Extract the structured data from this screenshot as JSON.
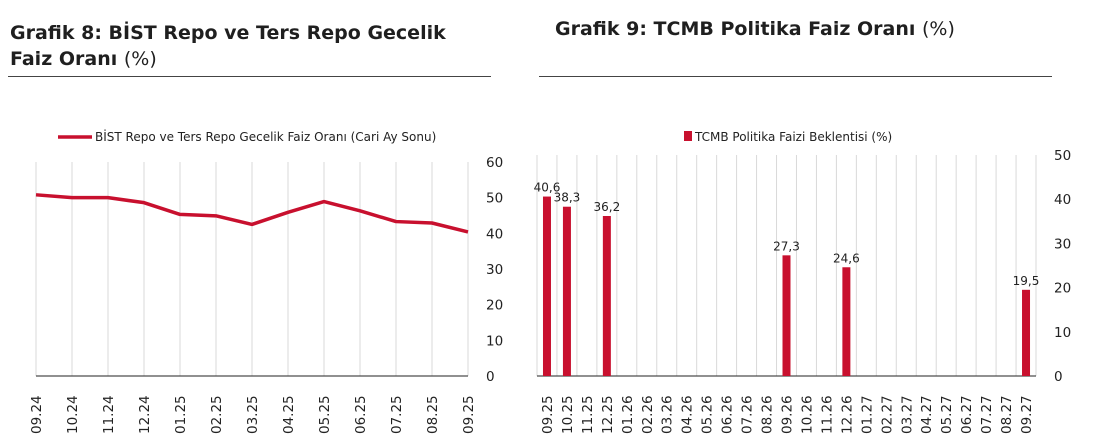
{
  "panels": {
    "left": {
      "title": "Grafik 8:  BİST Repo ve Ters Repo Gecelik Faiz Oranı",
      "title_unit": "(%)"
    },
    "right": {
      "title": "Grafik 9: TCMB Politika Faiz Oranı",
      "title_unit": "(%)"
    }
  },
  "colors": {
    "series": "#C8102E",
    "grid": "#d9d9d9",
    "axis": "#222222"
  },
  "chart_data": [
    {
      "type": "line",
      "legend": "BİST Repo ve Ters Repo Gecelik Faiz Oranı (Cari Ay Sonu)",
      "legend_position": "top",
      "categories": [
        "09.24",
        "10.24",
        "11.24",
        "12.24",
        "01.25",
        "02.25",
        "03.25",
        "04.25",
        "05.25",
        "06.25",
        "07.25",
        "08.25",
        "09.25"
      ],
      "values": [
        50.8,
        50.0,
        50.0,
        48.6,
        45.3,
        44.9,
        42.5,
        45.9,
        48.9,
        46.3,
        43.3,
        42.9,
        40.4
      ],
      "ylim": [
        0,
        60
      ],
      "yticks": [
        0,
        10,
        20,
        30,
        40,
        50,
        60
      ],
      "y_axis_side": "right",
      "grid": "vertical"
    },
    {
      "type": "bar",
      "legend": "TCMB Politika Faizi Beklentisi (%)",
      "legend_position": "top",
      "categories": [
        "09.25",
        "10.25",
        "11.25",
        "12.25",
        "01.26",
        "02.26",
        "03.26",
        "04.26",
        "05.26",
        "06.26",
        "07.26",
        "08.26",
        "09.26",
        "10.26",
        "11.26",
        "12.26",
        "01.27",
        "02.27",
        "03.27",
        "04.27",
        "05.27",
        "06.27",
        "07.27",
        "08.27",
        "09.27"
      ],
      "points": [
        {
          "category": "09.25",
          "value": 40.6,
          "label": "40,6"
        },
        {
          "category": "10.25",
          "value": 38.3,
          "label": "38,3"
        },
        {
          "category": "12.25",
          "value": 36.2,
          "label": "36,2"
        },
        {
          "category": "09.26",
          "value": 27.3,
          "label": "27,3"
        },
        {
          "category": "12.26",
          "value": 24.6,
          "label": "24,6"
        },
        {
          "category": "09.27",
          "value": 19.5,
          "label": "19,5"
        }
      ],
      "ylim": [
        0,
        50
      ],
      "yticks": [
        0,
        10,
        20,
        30,
        40,
        50
      ],
      "y_axis_side": "right",
      "grid": "vertical"
    }
  ]
}
